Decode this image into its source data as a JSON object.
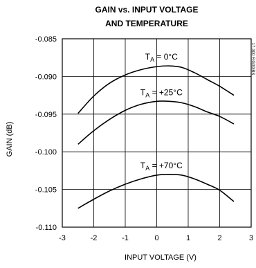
{
  "chart_data": {
    "type": "line",
    "title_lines": [
      "GAIN vs. INPUT VOLTAGE",
      "AND TEMPERATURE"
    ],
    "xlabel": "INPUT VOLTAGE (V)",
    "ylabel": "GAIN (dB)",
    "xlim": [
      -3,
      3
    ],
    "ylim": [
      -0.11,
      -0.085
    ],
    "x_ticks": [
      "-3",
      "-2",
      "-1",
      "0",
      "1",
      "2",
      "3"
    ],
    "y_ticks": [
      "-0.085",
      "-0.090",
      "-0.095",
      "-0.100",
      "-0.105",
      "-0.110"
    ],
    "grid": true,
    "side_code": "17-300 FIG00IBS",
    "series": [
      {
        "name": "TA = 0°C",
        "label_main": "T",
        "label_sub": "A",
        "label_rest": " = 0°C",
        "x": [
          -2.5,
          -2.0,
          -1.5,
          -1.0,
          -0.5,
          0.0,
          0.4,
          0.8,
          1.2,
          1.6,
          2.0,
          2.45
        ],
        "y": [
          -0.0949,
          -0.0926,
          -0.0909,
          -0.0898,
          -0.0891,
          -0.0887,
          -0.0886,
          -0.0888,
          -0.0895,
          -0.0904,
          -0.0913,
          -0.0925
        ]
      },
      {
        "name": "TA = +25°C",
        "label_main": "T",
        "label_sub": "A",
        "label_rest": " = +25°C",
        "x": [
          -2.5,
          -2.0,
          -1.5,
          -1.0,
          -0.5,
          0.0,
          0.4,
          0.8,
          1.2,
          1.6,
          2.0,
          2.45
        ],
        "y": [
          -0.099,
          -0.0972,
          -0.0957,
          -0.0945,
          -0.0937,
          -0.0933,
          -0.0933,
          -0.0935,
          -0.094,
          -0.0947,
          -0.0953,
          -0.0963
        ]
      },
      {
        "name": "TA = +70°C",
        "label_main": "T",
        "label_sub": "A",
        "label_rest": " = +70°C",
        "x": [
          -2.5,
          -2.0,
          -1.5,
          -1.0,
          -0.5,
          0.0,
          0.4,
          0.8,
          1.2,
          1.6,
          2.0,
          2.45
        ],
        "y": [
          -0.1075,
          -0.1063,
          -0.1052,
          -0.1043,
          -0.1036,
          -0.1031,
          -0.103,
          -0.1031,
          -0.1036,
          -0.1043,
          -0.1051,
          -0.1066
        ]
      }
    ]
  }
}
